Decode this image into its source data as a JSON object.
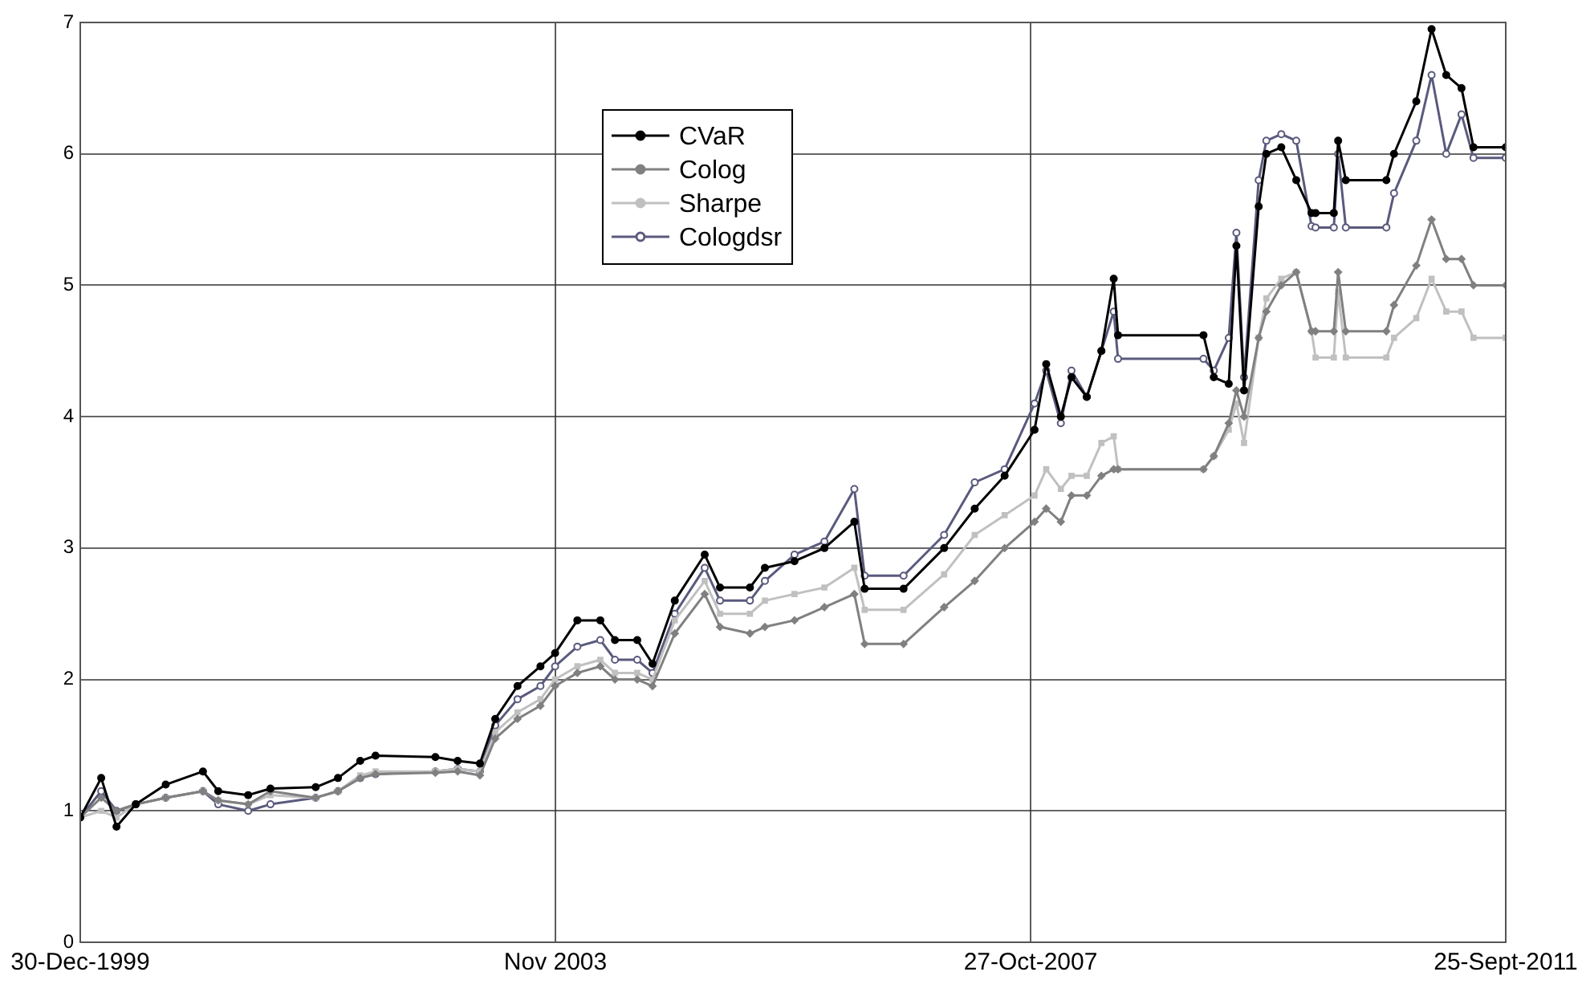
{
  "chart_data": {
    "type": "line",
    "legend": "top",
    "grid": true,
    "line_style": "solid",
    "xlim": [
      "1999-12-30",
      "2011-09-25"
    ],
    "xticks": [
      {
        "value": "1999-12-30",
        "label": "30-Dec-1999"
      },
      {
        "value": "2003-11-28",
        "label": "Nov 2003"
      },
      {
        "value": "2007-10-27",
        "label": "27-Oct-2007"
      },
      {
        "value": "2011-09-25",
        "label": "25-Sept-2011"
      }
    ],
    "ylim": [
      0,
      7
    ],
    "yticks": [
      0,
      1,
      2,
      3,
      4,
      5,
      6,
      7
    ],
    "x": [
      "1999-12-30",
      "2000-03-02",
      "2000-04-17",
      "2000-06-14",
      "2000-09-12",
      "2001-01-02",
      "2001-02-17",
      "2001-05-18",
      "2001-07-24",
      "2001-12-07",
      "2002-02-12",
      "2002-04-20",
      "2002-06-05",
      "2002-12-02",
      "2003-02-07",
      "2003-04-15",
      "2003-05-31",
      "2003-08-06",
      "2003-10-14",
      "2003-11-27",
      "2004-02-02",
      "2004-04-11",
      "2004-05-25",
      "2004-07-31",
      "2004-09-15",
      "2004-11-21",
      "2005-02-19",
      "2005-04-06",
      "2005-07-05",
      "2005-08-19",
      "2005-11-16",
      "2006-02-14",
      "2006-05-15",
      "2006-06-15",
      "2006-10-10",
      "2007-02-09",
      "2007-05-12",
      "2007-08-10",
      "2007-11-08",
      "2007-12-13",
      "2008-01-26",
      "2008-02-27",
      "2008-04-13",
      "2008-05-27",
      "2008-07-03",
      "2008-07-16",
      "2009-03-30",
      "2009-04-30",
      "2009-06-14",
      "2009-07-07",
      "2009-07-30",
      "2009-09-12",
      "2009-10-05",
      "2009-11-19",
      "2010-01-03",
      "2010-02-18",
      "2010-03-02",
      "2010-04-26",
      "2010-05-09",
      "2010-06-01",
      "2010-10-01",
      "2010-10-24",
      "2010-12-30",
      "2011-02-14",
      "2011-03-30",
      "2011-05-15",
      "2011-06-20",
      "2011-09-25"
    ],
    "series": [
      {
        "name": "CVaR",
        "color": "#000000",
        "marker": "circle",
        "values": [
          0.95,
          1.25,
          0.88,
          1.05,
          1.2,
          1.3,
          1.15,
          1.12,
          1.17,
          1.18,
          1.25,
          1.38,
          1.42,
          1.41,
          1.38,
          1.36,
          1.7,
          1.95,
          2.1,
          2.2,
          2.45,
          2.45,
          2.3,
          2.3,
          2.12,
          2.6,
          2.95,
          2.7,
          2.7,
          2.85,
          2.9,
          3.0,
          3.2,
          2.69,
          2.69,
          3.0,
          3.3,
          3.55,
          3.9,
          4.4,
          4.0,
          4.3,
          4.15,
          4.5,
          5.05,
          4.62,
          4.62,
          4.3,
          4.25,
          5.3,
          4.2,
          5.6,
          6.0,
          6.05,
          5.8,
          5.55,
          5.55,
          5.55,
          6.1,
          5.8,
          5.8,
          6.0,
          6.4,
          6.95,
          6.6,
          6.5,
          6.05,
          6.05
        ]
      },
      {
        "name": "Colog",
        "color": "#808080",
        "marker": "diamond",
        "values": [
          0.95,
          1.1,
          1.0,
          1.05,
          1.1,
          1.15,
          1.08,
          1.05,
          1.15,
          1.1,
          1.15,
          1.25,
          1.28,
          1.29,
          1.3,
          1.27,
          1.55,
          1.7,
          1.8,
          1.95,
          2.05,
          2.1,
          2.0,
          2.0,
          1.95,
          2.35,
          2.65,
          2.4,
          2.35,
          2.4,
          2.45,
          2.55,
          2.65,
          2.27,
          2.27,
          2.55,
          2.75,
          3.0,
          3.2,
          3.3,
          3.2,
          3.4,
          3.4,
          3.55,
          3.6,
          3.6,
          3.6,
          3.7,
          3.95,
          4.2,
          4.0,
          4.6,
          4.8,
          5.0,
          5.1,
          4.65,
          4.65,
          4.65,
          5.1,
          4.65,
          4.65,
          4.85,
          5.15,
          5.5,
          5.2,
          5.2,
          5.0,
          5.0
        ]
      },
      {
        "name": "Sharpe",
        "color": "#c0c0c0",
        "marker": "square",
        "values": [
          0.95,
          1.0,
          0.95,
          1.05,
          1.1,
          1.15,
          1.08,
          1.05,
          1.12,
          1.1,
          1.15,
          1.27,
          1.3,
          1.3,
          1.32,
          1.3,
          1.6,
          1.75,
          1.85,
          2.0,
          2.1,
          2.15,
          2.05,
          2.05,
          2.0,
          2.45,
          2.75,
          2.5,
          2.5,
          2.6,
          2.65,
          2.7,
          2.85,
          2.53,
          2.53,
          2.8,
          3.1,
          3.25,
          3.4,
          3.6,
          3.45,
          3.55,
          3.55,
          3.8,
          3.85,
          3.6,
          3.6,
          3.7,
          3.9,
          4.1,
          3.8,
          4.6,
          4.9,
          5.05,
          5.1,
          4.65,
          4.45,
          4.45,
          4.95,
          4.45,
          4.45,
          4.6,
          4.75,
          5.05,
          4.8,
          4.8,
          4.6,
          4.6
        ]
      },
      {
        "name": "Cologdsr",
        "color": "#5a5a7e",
        "marker": "circle",
        "values": [
          0.95,
          1.15,
          1.0,
          1.05,
          1.1,
          1.15,
          1.05,
          1.0,
          1.05,
          1.1,
          1.15,
          1.25,
          1.28,
          1.3,
          1.32,
          1.3,
          1.65,
          1.85,
          1.95,
          2.1,
          2.25,
          2.3,
          2.15,
          2.15,
          2.05,
          2.5,
          2.85,
          2.6,
          2.6,
          2.75,
          2.95,
          3.05,
          3.45,
          2.79,
          2.79,
          3.1,
          3.5,
          3.6,
          4.1,
          4.35,
          3.95,
          4.35,
          4.15,
          4.5,
          4.8,
          4.44,
          4.44,
          4.35,
          4.6,
          5.4,
          4.3,
          5.8,
          6.1,
          6.15,
          6.1,
          5.45,
          5.44,
          5.44,
          6.0,
          5.44,
          5.44,
          5.7,
          6.1,
          6.6,
          6.0,
          6.3,
          5.97,
          5.97
        ]
      }
    ]
  }
}
